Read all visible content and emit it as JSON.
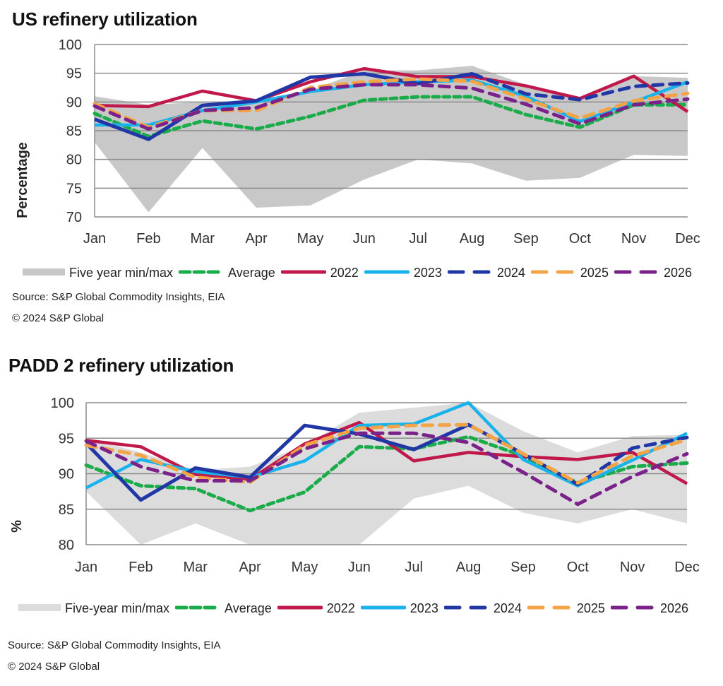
{
  "chart_data": [
    {
      "type": "line",
      "title": "US refinery utilization",
      "xlabel": "",
      "ylabel": "Percentage",
      "ylim": [
        70,
        100
      ],
      "yticks": [
        "100",
        "95",
        "90",
        "85",
        "80",
        "75",
        "70"
      ],
      "ytick_values": [
        100,
        95,
        90,
        85,
        80,
        75,
        70
      ],
      "categories": [
        "Jan",
        "Feb",
        "Mar",
        "Apr",
        "May",
        "Jun",
        "Jul",
        "Aug",
        "Sep",
        "Oct",
        "Nov",
        "Dec"
      ],
      "grid": true,
      "legend_position": "bottom",
      "band": {
        "name": "Five year min/max",
        "color": "#c8c8c8",
        "max": [
          91,
          89.5,
          90,
          90,
          92,
          95.5,
          95.5,
          96.3,
          93,
          90.5,
          94.5,
          94.2
        ],
        "min": [
          83,
          70.8,
          82,
          71.6,
          72,
          76.5,
          80,
          79.3,
          76.3,
          76.8,
          80.8,
          80.6
        ]
      },
      "series": [
        {
          "name": "Average",
          "color": "#1aab4b",
          "style": "dotted-dash",
          "values": [
            88,
            84,
            86.7,
            85.3,
            87.5,
            90.3,
            90.9,
            90.9,
            87.8,
            85.6,
            89.5,
            89.5
          ]
        },
        {
          "name": "2022",
          "color": "#c0184a",
          "style": "solid",
          "values": [
            89.4,
            89.2,
            91.9,
            90.2,
            93.5,
            95.8,
            94.4,
            94.4,
            92.8,
            90.6,
            94.5,
            88.3
          ]
        },
        {
          "name": "2023",
          "color": "#19b2ea",
          "style": "solid",
          "values": [
            86,
            86,
            88.5,
            90,
            91.8,
            93,
            93.5,
            93.8,
            91,
            86.6,
            90,
            93.5
          ]
        },
        {
          "name": "2024",
          "color": "#2137a6",
          "style": "solid-then-dash",
          "values": [
            87,
            83.5,
            89.4,
            90.2,
            94.3,
            94.9,
            93.2,
            94.9,
            91.4,
            90.4,
            92.7,
            93.3
          ]
        },
        {
          "name": "2025",
          "color": "#f2a446",
          "style": "dash",
          "values": [
            89.7,
            85.6,
            88.5,
            88.5,
            92.5,
            93.5,
            94,
            93.6,
            90.5,
            87.2,
            90.2,
            91.5
          ]
        },
        {
          "name": "2026",
          "color": "#7b228a",
          "style": "dash",
          "values": [
            89.3,
            85.3,
            88.5,
            89,
            92.2,
            93,
            93,
            92.4,
            89.6,
            86.2,
            89.5,
            90.5
          ]
        }
      ],
      "source": "Source: S&P Global Commodity Insights, EIA",
      "copyright": "© 2024 S&P Global"
    },
    {
      "type": "line",
      "title": "PADD 2 refinery utilization",
      "xlabel": "",
      "ylabel": "%",
      "ylim": [
        80,
        100
      ],
      "yticks": [
        "100",
        "95",
        "90",
        "85",
        "80"
      ],
      "ytick_values": [
        100,
        95,
        90,
        85,
        80
      ],
      "categories": [
        "Jan",
        "Feb",
        "Mar",
        "Apr",
        "May",
        "Jun",
        "Jul",
        "Aug",
        "Sep",
        "Oct",
        "Nov",
        "Dec"
      ],
      "grid": true,
      "legend_position": "bottom",
      "band": {
        "name": "Five-year min/max",
        "color": "#dcdcdc",
        "max": [
          95,
          93,
          90.5,
          91,
          94,
          98.6,
          99.3,
          100,
          96,
          93,
          95.3,
          95.5
        ],
        "min": [
          87.5,
          79.7,
          83,
          79.7,
          79.7,
          79.7,
          86.5,
          88.3,
          84.5,
          83,
          85,
          83
        ]
      },
      "series": [
        {
          "name": "Average",
          "color": "#1aab4b",
          "style": "dotted-dash",
          "values": [
            91.2,
            88.3,
            87.9,
            84.8,
            87.4,
            93.8,
            93.5,
            95.2,
            92.5,
            88.7,
            91,
            91.5
          ]
        },
        {
          "name": "2022",
          "color": "#c0184a",
          "style": "solid",
          "values": [
            94.7,
            93.8,
            89.9,
            89.2,
            94.2,
            97.2,
            91.8,
            93,
            92.4,
            92,
            93,
            88.6
          ]
        },
        {
          "name": "2023",
          "color": "#19b2ea",
          "style": "solid",
          "values": [
            88,
            92,
            90.3,
            89.5,
            91.8,
            96.8,
            97,
            100,
            92,
            88.3,
            91.9,
            95.7
          ]
        },
        {
          "name": "2024",
          "color": "#2137a6",
          "style": "solid-then-dash",
          "values": [
            94.3,
            86.3,
            90.8,
            89.5,
            96.8,
            95.6,
            93.4,
            96.9,
            92.8,
            88.5,
            93.6,
            95.1
          ]
        },
        {
          "name": "2025",
          "color": "#f2a446",
          "style": "dash",
          "values": [
            94,
            92.6,
            89.5,
            88.8,
            94,
            96.4,
            96.8,
            96.9,
            92.8,
            88.7,
            92.5,
            94.8
          ]
        },
        {
          "name": "2026",
          "color": "#7b228a",
          "style": "dash",
          "values": [
            94.6,
            91,
            89,
            89,
            93.5,
            95.7,
            95.7,
            94.4,
            90.2,
            85.7,
            89.6,
            92.8
          ]
        }
      ],
      "source": "Source: S&P Global Commodity Insights, EIA",
      "copyright": "© 2024 S&P Global"
    }
  ]
}
